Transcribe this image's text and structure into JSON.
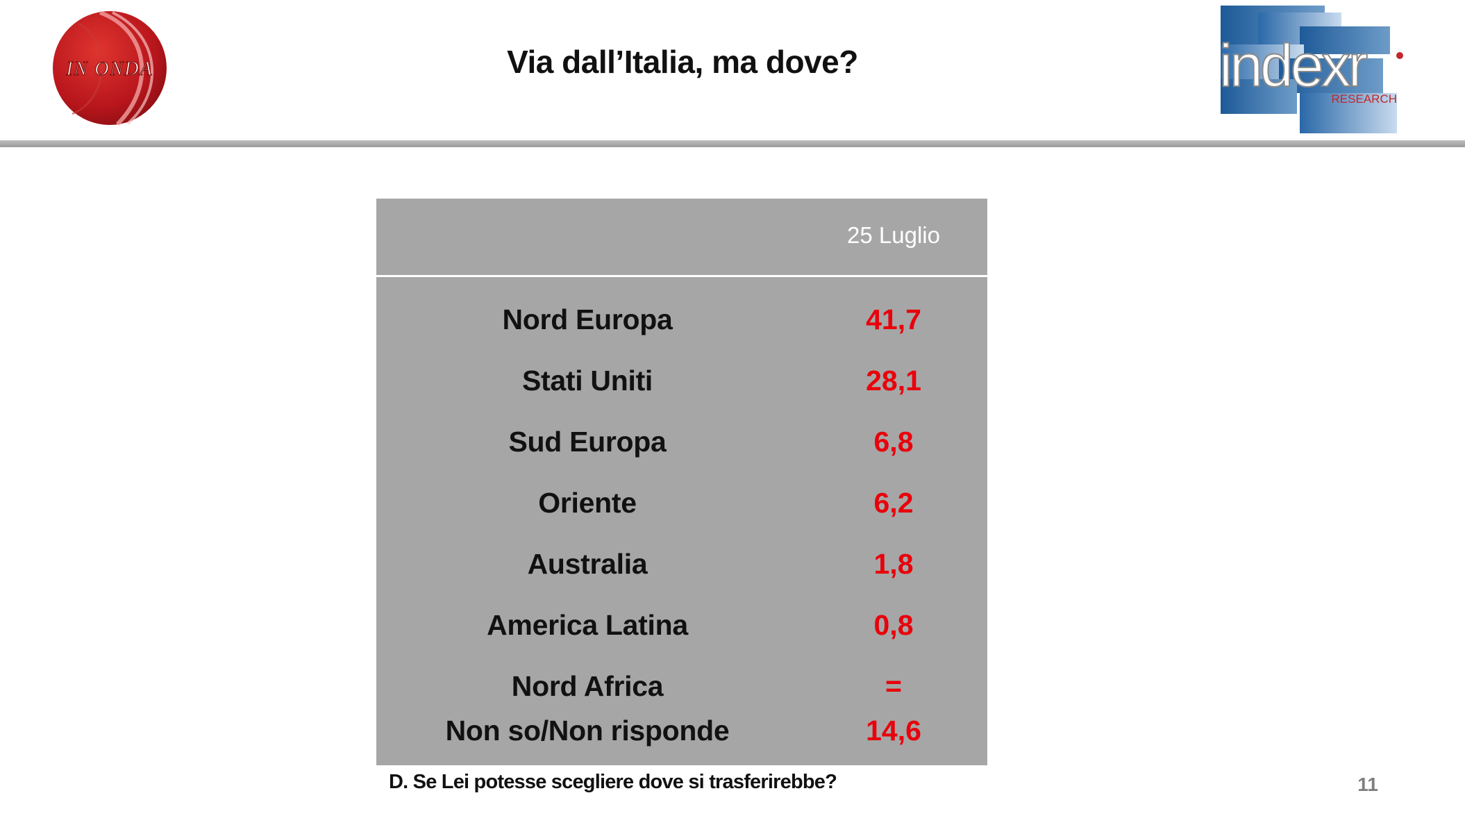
{
  "header": {
    "title": "Via dall’Italia, ma dove?",
    "logo_left_text": "IN ONDA",
    "logo_right_text": "indexr",
    "logo_right_sub": "RESEARCH"
  },
  "table": {
    "column_header": "25 Luglio",
    "rows": [
      {
        "label": "Nord Europa",
        "value": "41,7"
      },
      {
        "label": "Stati Uniti",
        "value": "28,1"
      },
      {
        "label": "Sud Europa",
        "value": "6,8"
      },
      {
        "label": "Oriente",
        "value": "6,2"
      },
      {
        "label": "Australia",
        "value": "1,8"
      },
      {
        "label": "America Latina",
        "value": "0,8"
      },
      {
        "label": "Nord Africa",
        "value": "="
      },
      {
        "label": "Non so/Non risponde",
        "value": "14,6"
      }
    ]
  },
  "footer": {
    "question": "D. Se Lei potesse scegliere dove si trasferirebbe?",
    "page_number": "11"
  },
  "colors": {
    "table_bg": "#a6a6a6",
    "value_red": "#e8000b",
    "logo_blue": "#1f5b9a"
  }
}
